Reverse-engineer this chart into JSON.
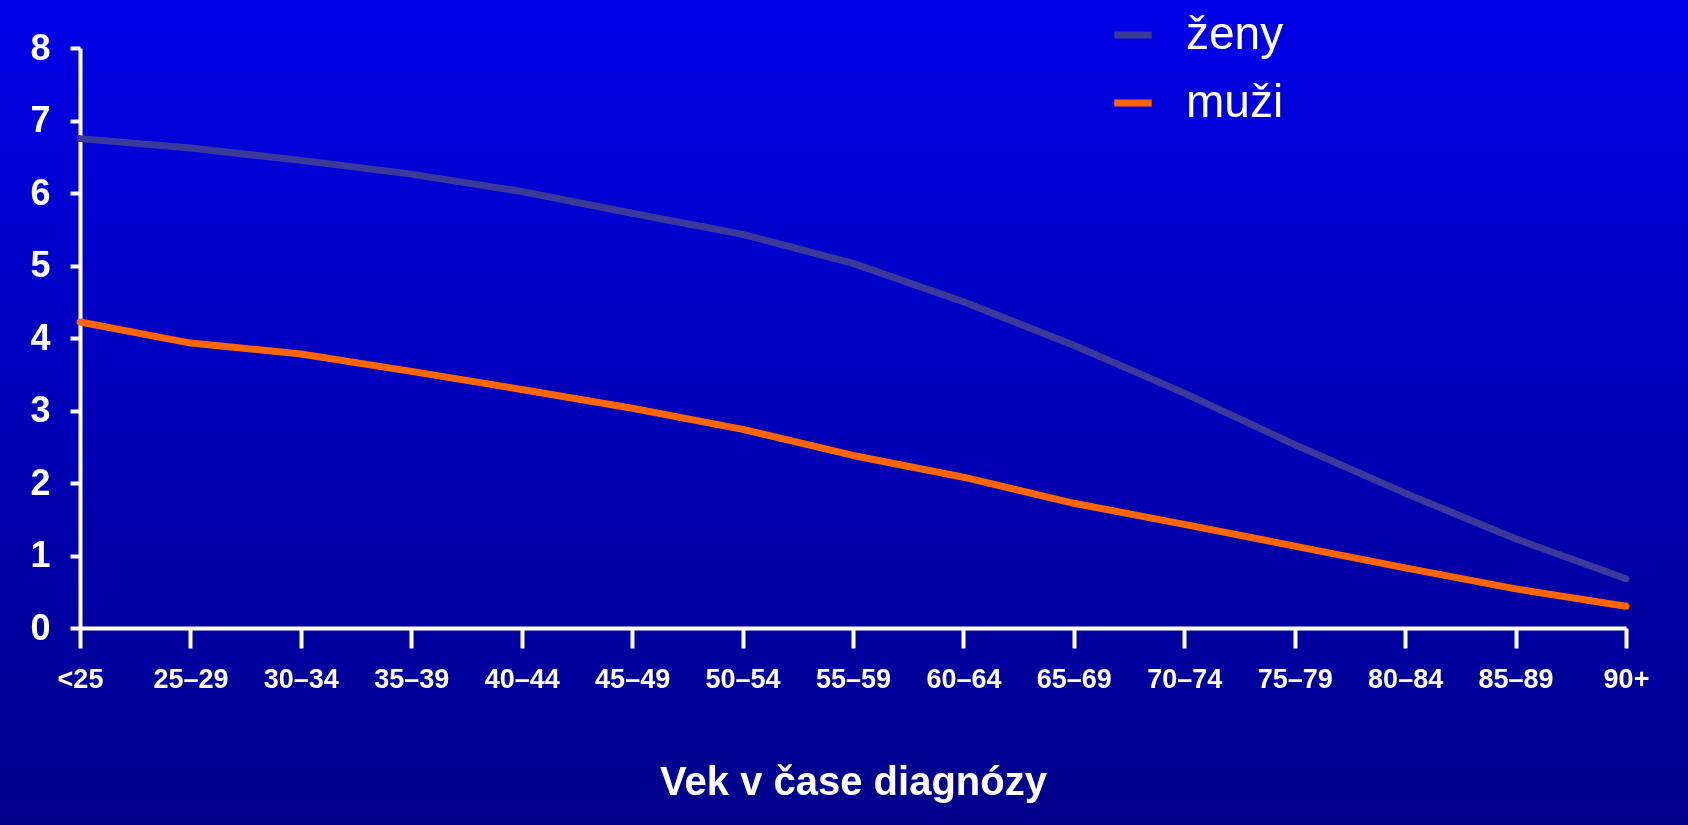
{
  "chart_data": {
    "type": "line",
    "xlabel": "Vek v čase diagnózy",
    "categories": [
      "<25",
      "25–29",
      "30–34",
      "35–39",
      "40–44",
      "45–49",
      "50–54",
      "55–59",
      "60–64",
      "65–69",
      "70–74",
      "75–79",
      "80–84",
      "85–89",
      "90+"
    ],
    "series": [
      {
        "name": "ženy",
        "color": "#3a3a9a",
        "values": [
          6.75,
          6.62,
          6.45,
          6.26,
          6.02,
          5.72,
          5.43,
          5.03,
          4.5,
          3.9,
          3.24,
          2.53,
          1.86,
          1.23,
          0.68
        ]
      },
      {
        "name": "muži",
        "color": "#ff6600",
        "values": [
          4.22,
          3.93,
          3.78,
          3.54,
          3.29,
          3.03,
          2.74,
          2.38,
          2.08,
          1.72,
          1.43,
          1.13,
          0.83,
          0.54,
          0.3
        ]
      }
    ],
    "ylim": [
      0,
      8
    ],
    "yticks": [
      0,
      1,
      2,
      3,
      4,
      5,
      6,
      7,
      8
    ],
    "grid": false,
    "legend": "top right",
    "marker": "none",
    "line_style": "solid"
  }
}
